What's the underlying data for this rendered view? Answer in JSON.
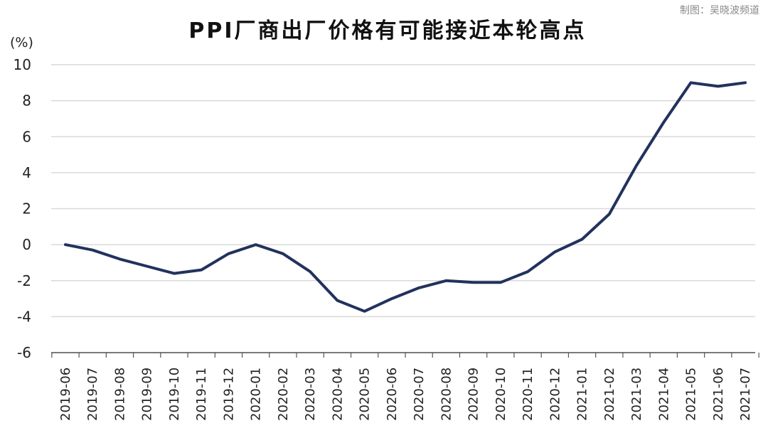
{
  "credit": "制图：吴晓波频道",
  "colors": {
    "line": "#22325e",
    "grid": "#d9d9d9",
    "axis": "#555555"
  },
  "chart_data": {
    "type": "line",
    "title": "PPI厂商出厂价格有可能接近本轮高点",
    "ylabel": "(%)",
    "xlabel": "",
    "ylim": [
      -6,
      10
    ],
    "yticks": [
      10,
      8,
      6,
      4,
      2,
      0,
      -2,
      -4,
      -6
    ],
    "grid": true,
    "legend": "none",
    "categories": [
      "2019-06",
      "2019-07",
      "2019-08",
      "2019-09",
      "2019-10",
      "2019-11",
      "2019-12",
      "2020-01",
      "2020-02",
      "2020-03",
      "2020-04",
      "2020-05",
      "2020-06",
      "2020-07",
      "2020-08",
      "2020-09",
      "2020-10",
      "2020-11",
      "2020-12",
      "2021-01",
      "2021-02",
      "2021-03",
      "2021-04",
      "2021-05",
      "2021-06",
      "2021-07"
    ],
    "series": [
      {
        "values": [
          0.0,
          -0.3,
          -0.8,
          -1.2,
          -1.6,
          -1.4,
          -0.5,
          0.0,
          -0.5,
          -1.5,
          -3.1,
          -3.7,
          -3.0,
          -2.4,
          -2.0,
          -2.1,
          -2.1,
          -1.5,
          -0.4,
          0.3,
          1.7,
          4.4,
          6.8,
          9.0,
          8.8,
          9.0
        ]
      }
    ]
  }
}
